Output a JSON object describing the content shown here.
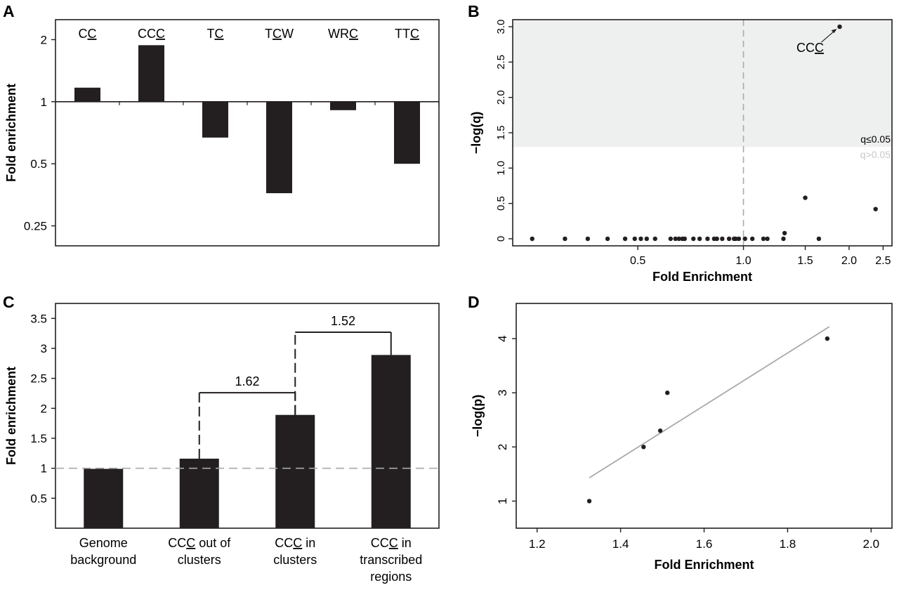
{
  "chart_data": [
    {
      "panel": "A",
      "type": "bar",
      "ylabel": "Fold enrichment",
      "yscale": "log",
      "baseline": 1,
      "ylim": [
        0.2,
        2.5
      ],
      "yticks": [
        0.25,
        0.5,
        1,
        2
      ],
      "categories": [
        {
          "prefix": "C",
          "underlined": "C",
          "suffix": ""
        },
        {
          "prefix": "CC",
          "underlined": "C",
          "suffix": ""
        },
        {
          "prefix": "T",
          "underlined": "C",
          "suffix": ""
        },
        {
          "prefix": "T",
          "underlined": "C",
          "suffix": "W"
        },
        {
          "prefix": "WR",
          "underlined": "C",
          "suffix": ""
        },
        {
          "prefix": "TT",
          "underlined": "C",
          "suffix": ""
        }
      ],
      "values": [
        1.17,
        1.88,
        0.67,
        0.36,
        0.91,
        0.5
      ],
      "grid": false
    },
    {
      "panel": "B",
      "type": "scatter",
      "xlabel": "Fold Enrichment",
      "ylabel": "−log(q)",
      "xscale": "log",
      "xlim": [
        0.22,
        2.65
      ],
      "ylim": [
        -0.1,
        3.1
      ],
      "xticks": [
        0.5,
        1.0,
        1.5,
        2.0,
        2.5
      ],
      "yticks": [
        0,
        0.5,
        1.0,
        1.5,
        2.0,
        2.5,
        3.0
      ],
      "threshold": 1.3,
      "threshold_labels": {
        "above": "q≤0.05",
        "below": "q>0.05"
      },
      "reference_x": 1.0,
      "annotation": {
        "prefix": "CC",
        "underlined": "C",
        "suffix": "",
        "x": 1.88,
        "y": 3.0
      },
      "points": [
        {
          "x": 0.25,
          "y": 0
        },
        {
          "x": 0.31,
          "y": 0
        },
        {
          "x": 0.36,
          "y": 0
        },
        {
          "x": 0.41,
          "y": 0
        },
        {
          "x": 0.46,
          "y": 0
        },
        {
          "x": 0.49,
          "y": 0
        },
        {
          "x": 0.51,
          "y": 0
        },
        {
          "x": 0.53,
          "y": 0
        },
        {
          "x": 0.56,
          "y": 0
        },
        {
          "x": 0.62,
          "y": 0
        },
        {
          "x": 0.64,
          "y": 0
        },
        {
          "x": 0.655,
          "y": 0
        },
        {
          "x": 0.67,
          "y": 0
        },
        {
          "x": 0.68,
          "y": 0
        },
        {
          "x": 0.72,
          "y": 0
        },
        {
          "x": 0.75,
          "y": 0
        },
        {
          "x": 0.79,
          "y": 0
        },
        {
          "x": 0.825,
          "y": 0
        },
        {
          "x": 0.84,
          "y": 0
        },
        {
          "x": 0.87,
          "y": 0
        },
        {
          "x": 0.91,
          "y": 0
        },
        {
          "x": 0.94,
          "y": 0
        },
        {
          "x": 0.95,
          "y": 0
        },
        {
          "x": 0.97,
          "y": 0
        },
        {
          "x": 1.01,
          "y": 0
        },
        {
          "x": 1.06,
          "y": 0
        },
        {
          "x": 1.14,
          "y": 0
        },
        {
          "x": 1.17,
          "y": 0
        },
        {
          "x": 1.3,
          "y": 0
        },
        {
          "x": 1.31,
          "y": 0.08
        },
        {
          "x": 1.5,
          "y": 0.58
        },
        {
          "x": 1.64,
          "y": 0
        },
        {
          "x": 1.88,
          "y": 3.0
        },
        {
          "x": 2.38,
          "y": 0.42
        }
      ],
      "grid": false
    },
    {
      "panel": "C",
      "type": "bar",
      "ylabel": "Fold enrichment",
      "ylim": [
        0,
        3.75
      ],
      "yticks": [
        0.5,
        1,
        1.5,
        2,
        2.5,
        3,
        3.5
      ],
      "reference_y": 1,
      "categories": [
        {
          "lines": [
            "Genome",
            "background"
          ]
        },
        {
          "lines": [
            {
              "prefix": "CC",
              "underlined": "C",
              "suffix": " out of"
            },
            "clusters"
          ]
        },
        {
          "lines": [
            {
              "prefix": "CC",
              "underlined": "C",
              "suffix": " in"
            },
            "clusters"
          ]
        },
        {
          "lines": [
            {
              "prefix": "CC",
              "underlined": "C",
              "suffix": " in"
            },
            "transcribed",
            "regions"
          ]
        }
      ],
      "values": [
        0.99,
        1.16,
        1.89,
        2.89
      ],
      "comparisons": [
        {
          "from": 1,
          "to": 2,
          "label": "1.62"
        },
        {
          "from": 2,
          "to": 3,
          "label": "1.52"
        }
      ],
      "grid": false
    },
    {
      "panel": "D",
      "type": "scatter",
      "xlabel": "Fold Enrichment",
      "ylabel": "−log(p)",
      "xlim": [
        1.15,
        2.05
      ],
      "ylim": [
        0.5,
        4.65
      ],
      "xticks": [
        1.2,
        1.4,
        1.6,
        1.8,
        2.0
      ],
      "yticks": [
        1,
        2,
        3,
        4
      ],
      "points": [
        {
          "x": 1.325,
          "y": 1
        },
        {
          "x": 1.455,
          "y": 2
        },
        {
          "x": 1.495,
          "y": 2.3
        },
        {
          "x": 1.512,
          "y": 3
        },
        {
          "x": 1.895,
          "y": 4
        }
      ],
      "fit_line": {
        "x1": 1.325,
        "y1": 1.43,
        "x2": 1.9,
        "y2": 4.22
      },
      "grid": false
    }
  ]
}
